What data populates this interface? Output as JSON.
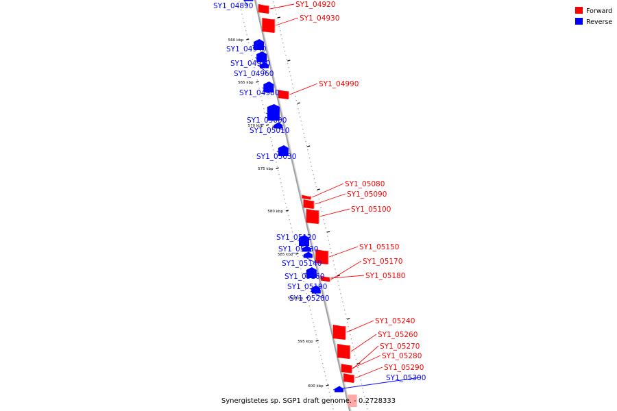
{
  "colors": {
    "forward": "#ff0000",
    "reverse": "#0000ff",
    "backbone": "#a0a0a0"
  },
  "legend": {
    "forward": "Forward",
    "reverse": "Reverse"
  },
  "caption": "Synergistetes sp. SGP1 draft genome. - 0.2728333",
  "ticks": [
    "560 kbp",
    "565 kbp",
    "570 kbp",
    "575 kbp",
    "580 kbp",
    "585 kbp",
    "590 kbp",
    "595 kbp",
    "600 kbp"
  ],
  "genes": [
    {
      "label": "SY1_04890",
      "strand": "reverse",
      "size": "small"
    },
    {
      "label": "SY1_04920",
      "strand": "forward",
      "size": "medium"
    },
    {
      "label": "SY1_04930",
      "strand": "forward",
      "size": "large"
    },
    {
      "label": "SY1_04940",
      "strand": "reverse",
      "size": "medium"
    },
    {
      "label": "SY1_04950",
      "strand": "reverse",
      "size": "medium"
    },
    {
      "label": "SY1_04960",
      "strand": "reverse",
      "size": "small"
    },
    {
      "label": "SY1_04980",
      "strand": "reverse",
      "size": "medium"
    },
    {
      "label": "SY1_04990",
      "strand": "forward",
      "size": "medium"
    },
    {
      "label": "SY1_05000",
      "strand": "reverse",
      "size": "large"
    },
    {
      "label": "SY1_05010",
      "strand": "reverse",
      "size": "small"
    },
    {
      "label": "SY1_05030",
      "strand": "reverse",
      "size": "medium"
    },
    {
      "label": "SY1_05080",
      "strand": "forward",
      "size": "small"
    },
    {
      "label": "SY1_05090",
      "strand": "forward",
      "size": "medium"
    },
    {
      "label": "SY1_05100",
      "strand": "forward",
      "size": "large"
    },
    {
      "label": "SY1_05120",
      "strand": "reverse",
      "size": "medium"
    },
    {
      "label": "SY1_05130",
      "strand": "reverse",
      "size": "small"
    },
    {
      "label": "SY1_05140",
      "strand": "reverse",
      "size": "small"
    },
    {
      "label": "SY1_05150",
      "strand": "forward",
      "size": "large"
    },
    {
      "label": "SY1_05160",
      "strand": "reverse",
      "size": "medium"
    },
    {
      "label": "SY1_05170",
      "strand": "forward",
      "size": "small"
    },
    {
      "label": "SY1_05180",
      "strand": "forward",
      "size": "small"
    },
    {
      "label": "SY1_05190",
      "strand": "reverse",
      "size": "small"
    },
    {
      "label": "SY1_05200",
      "strand": "reverse",
      "size": "small"
    },
    {
      "label": "SY1_05240",
      "strand": "forward",
      "size": "large"
    },
    {
      "label": "SY1_05260",
      "strand": "forward",
      "size": "large"
    },
    {
      "label": "SY1_05270",
      "strand": "forward",
      "size": "medium"
    },
    {
      "label": "SY1_05280",
      "strand": "forward",
      "size": "small"
    },
    {
      "label": "SY1_05290",
      "strand": "forward",
      "size": "medium"
    },
    {
      "label": "SY1_05300",
      "strand": "reverse",
      "size": "small"
    }
  ]
}
